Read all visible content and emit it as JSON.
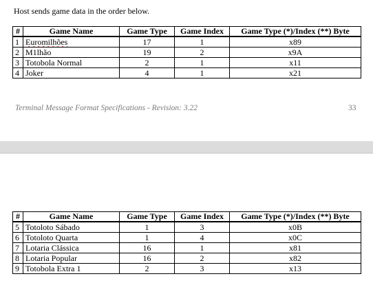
{
  "intro_text": "Host sends game data in the order below.",
  "columns": [
    "#",
    "Game Name",
    "Game Type",
    "Game Index",
    "Game Type (*)/Index (**) Byte"
  ],
  "table1": [
    {
      "num": "1",
      "name": "Euromilhões",
      "type": "17",
      "index": "1",
      "byte": "x89"
    },
    {
      "num": "2",
      "name": "M1lhão",
      "type": "19",
      "index": "2",
      "byte": "x9A"
    },
    {
      "num": "3",
      "name": "Totobola Normal",
      "type": "2",
      "index": "1",
      "byte": "x11"
    },
    {
      "num": "4",
      "name": "Joker",
      "type": "4",
      "index": "1",
      "byte": "x21"
    }
  ],
  "footer": {
    "text": "Terminal Message Format Specifications - Revision: 3.22",
    "page_number": "33"
  },
  "table2": [
    {
      "num": "5",
      "name": "Totoloto Sábado",
      "type": "1",
      "index": "3",
      "byte": "x0B"
    },
    {
      "num": "6",
      "name": "Totoloto Quarta",
      "type": "1",
      "index": "4",
      "byte": "x0C"
    },
    {
      "num": "7",
      "name": "Lotaria Clássica",
      "type": "16",
      "index": "1",
      "byte": "x81"
    },
    {
      "num": "8",
      "name": "Lotaria Popular",
      "type": "16",
      "index": "2",
      "byte": "x82"
    },
    {
      "num": "9",
      "name": "Totobola Extra 1",
      "type": "2",
      "index": "3",
      "byte": "x13"
    }
  ]
}
